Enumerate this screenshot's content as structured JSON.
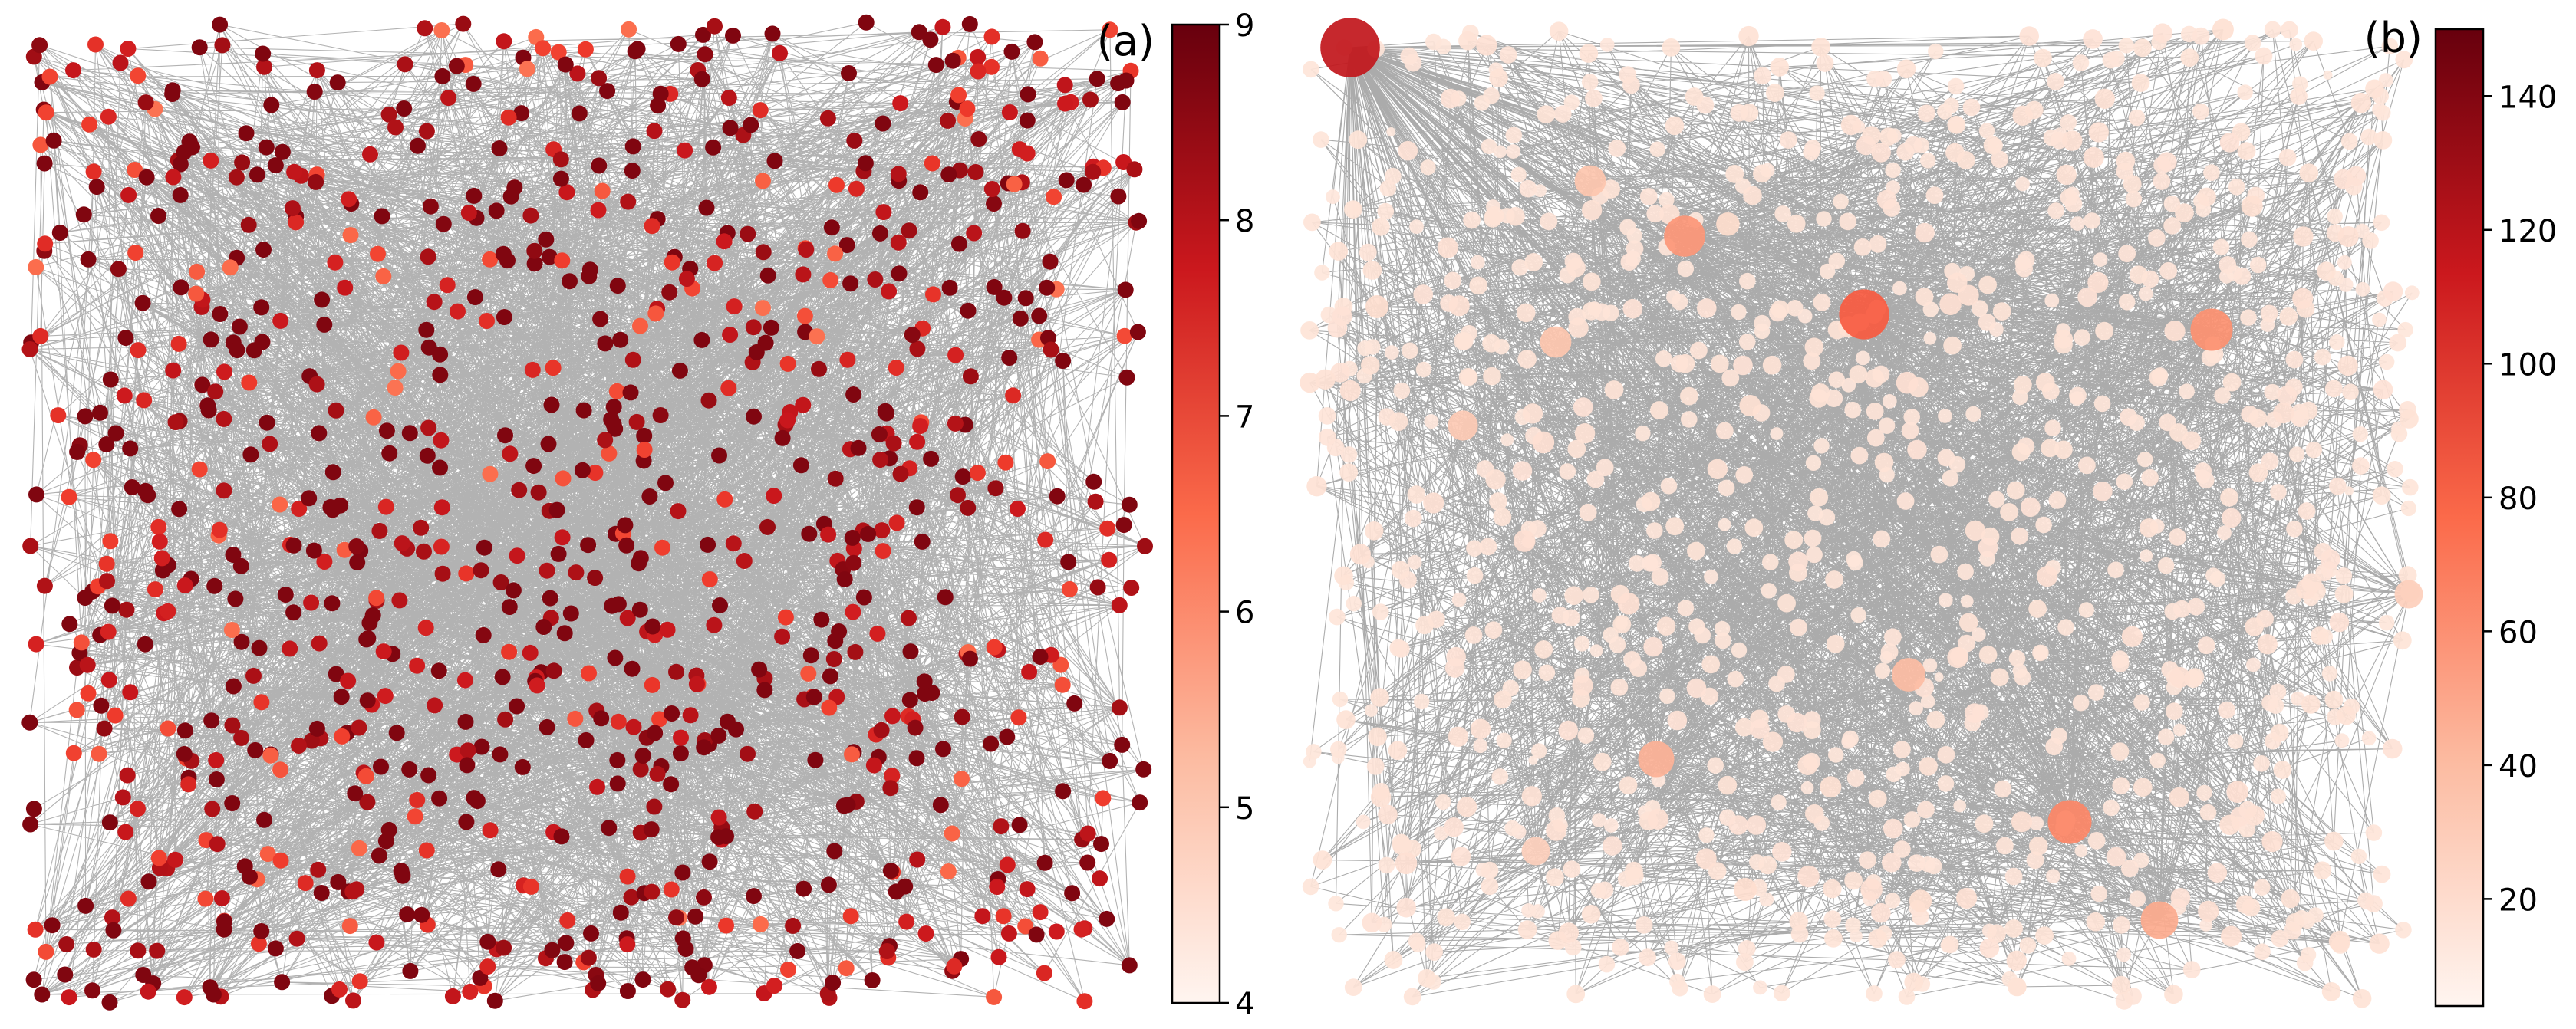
{
  "panels": [
    {
      "id": "a",
      "label": "(a)",
      "node_count": 1000,
      "seed": 7,
      "edges_per_node": 4.5,
      "node_style": "uniform-size, color by degree",
      "colorbar": {
        "min": 4,
        "max": 9,
        "ticks": [
          4,
          5,
          6,
          7,
          8,
          9
        ],
        "tick_labels": [
          "4",
          "5",
          "6",
          "7",
          "8",
          "9"
        ],
        "colormap": "Reds"
      }
    },
    {
      "id": "b",
      "label": "(b)",
      "node_count": 1000,
      "seed": 19,
      "edges_per_node": 4.5,
      "node_style": "size and color by degree (scale-free hubs)",
      "colorbar": {
        "min": 4,
        "max": 150,
        "ticks": [
          20,
          40,
          60,
          80,
          100,
          120,
          140
        ],
        "tick_labels": [
          "20",
          "40",
          "60",
          "80",
          "100",
          "120",
          "140"
        ],
        "colormap": "Reds"
      }
    }
  ],
  "colors": {
    "edge": "#000000",
    "reds_low": "#fff5f0",
    "reds_mid_low": "#fcbba1",
    "reds_mid": "#fb6a4a",
    "reds_mid_high": "#cb181d",
    "reds_high": "#67000d"
  }
}
